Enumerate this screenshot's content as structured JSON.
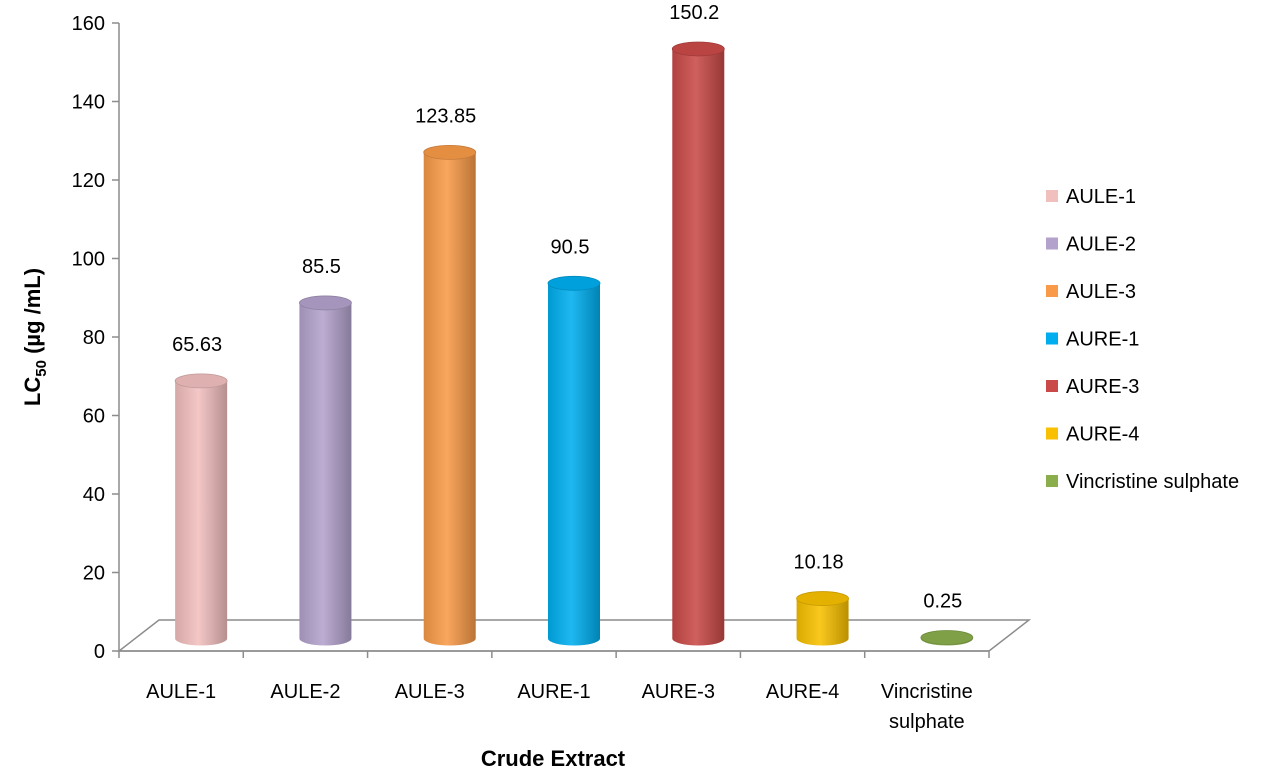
{
  "chart_data": {
    "type": "bar",
    "style": "3d-cylinder",
    "categories": [
      "AULE-1",
      "AULE-2",
      "AULE-3",
      "AURE-1",
      "AURE-3",
      "AURE-4",
      "Vincristine sulphate"
    ],
    "category_lines": [
      [
        "AULE-1"
      ],
      [
        "AULE-2"
      ],
      [
        "AULE-3"
      ],
      [
        "AURE-1"
      ],
      [
        "AURE-3"
      ],
      [
        "AURE-4"
      ],
      [
        "Vincristine",
        "sulphate"
      ]
    ],
    "values": [
      65.63,
      85.5,
      123.85,
      90.5,
      150.2,
      10.18,
      0.25
    ],
    "data_labels": [
      "65.63",
      "85.5",
      "123.85",
      "90.5",
      "150.2",
      "10.18",
      "0.25"
    ],
    "colors": [
      "#F2BFBF",
      "#B3A2CC",
      "#F89A48",
      "#00AEEF",
      "#C94A48",
      "#F8C000",
      "#8AAE4C"
    ],
    "xlabel": "Crude Extract",
    "ylabel_main": "LC",
    "ylabel_sub": "50",
    "ylabel_rest": " (µg /mL)",
    "ylim": [
      0,
      160
    ],
    "yticks": [
      "0",
      "20",
      "40",
      "60",
      "80",
      "100",
      "120",
      "140",
      "160"
    ],
    "legend_position": "right",
    "legend": [
      "AULE-1",
      "AULE-2",
      "AULE-3",
      "AURE-1",
      "AURE-3",
      "AURE-4",
      "Vincristine sulphate"
    ],
    "grid": false
  }
}
